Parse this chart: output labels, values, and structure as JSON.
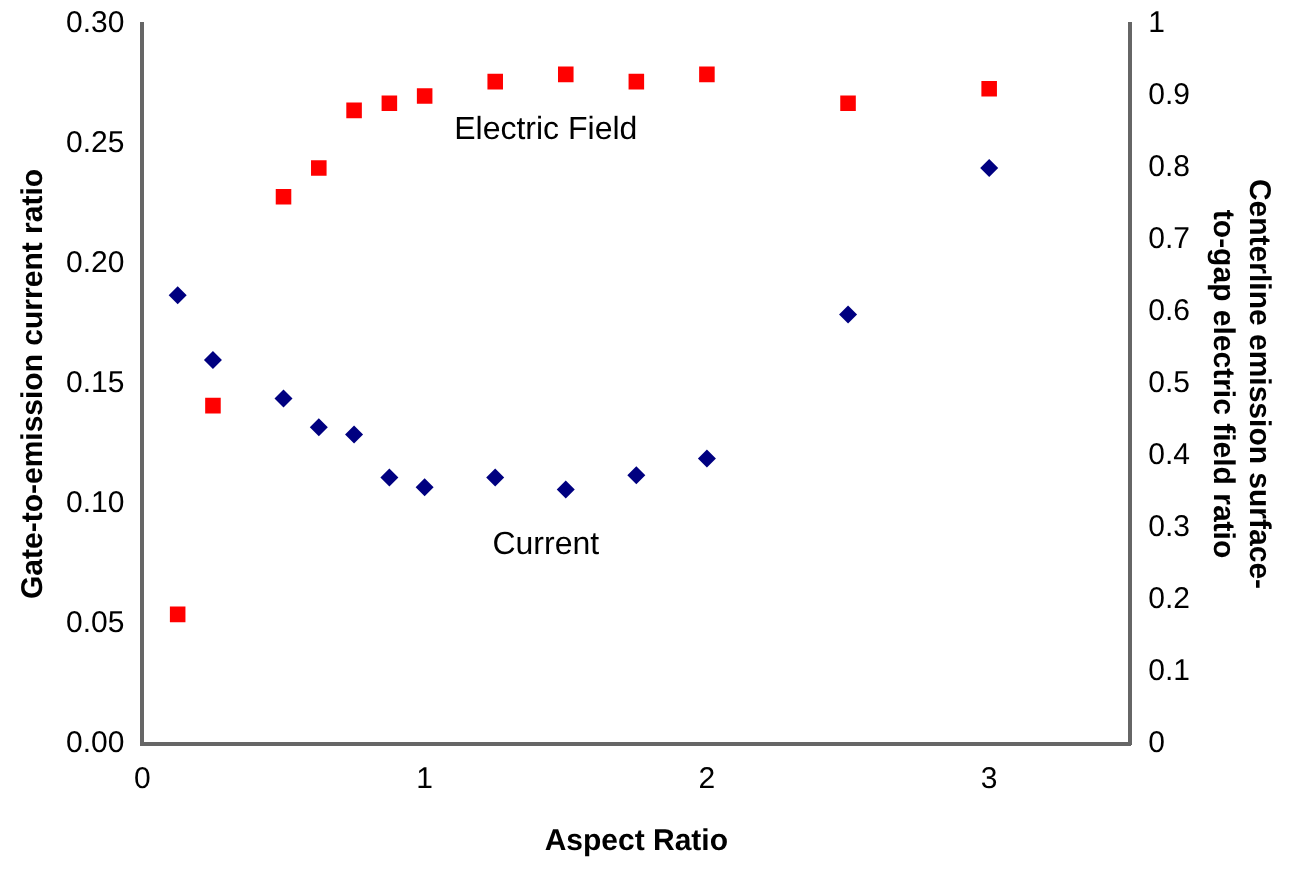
{
  "chart_data": {
    "type": "scatter",
    "xlabel": "Aspect Ratio",
    "ylabel": "Gate-to-emission current ratio",
    "y2label": "Centerline emission surface-to-gap electric field ratio",
    "xlim": [
      0,
      3.5
    ],
    "xticks": [
      0,
      1,
      2,
      3
    ],
    "ylim": [
      0,
      0.3
    ],
    "yticks": [
      {
        "value": 0,
        "label": "0.00"
      },
      0.05,
      {
        "value": 0.1,
        "label": "0.10"
      },
      0.15,
      {
        "value": 0.2,
        "label": "0.20"
      },
      0.25,
      {
        "value": 0.3,
        "label": "0.30"
      }
    ],
    "y2lim": [
      0,
      1
    ],
    "y2ticks": [
      0,
      0.1,
      0.2,
      0.3,
      0.4,
      0.5,
      0.6,
      0.7,
      0.8,
      0.9,
      1
    ],
    "grid": false,
    "legend": false,
    "series": [
      {
        "name": "Current",
        "color": "#000080",
        "marker": "diamond",
        "x": [
          0.125,
          0.25,
          0.5,
          0.625,
          0.75,
          0.875,
          1,
          1.25,
          1.5,
          1.75,
          2,
          2.5,
          3
        ],
        "values": [
          0.187,
          0.16,
          0.144,
          0.132,
          0.129,
          0.111,
          0.107,
          0.111,
          0.106,
          0.112,
          0.119,
          0.179,
          0.24
        ]
      },
      {
        "name": "Electric Field",
        "color": "#ff0000",
        "marker": "square",
        "axis": "y2",
        "x": [
          0.125,
          0.25,
          0.5,
          0.625,
          0.75,
          0.875,
          1,
          1.25,
          1.5,
          1.75,
          2,
          2.5,
          3
        ],
        "values": [
          0.18,
          0.47,
          0.76,
          0.8,
          0.88,
          0.89,
          0.9,
          0.92,
          0.93,
          0.92,
          0.93,
          0.89,
          0.91
        ]
      }
    ]
  }
}
